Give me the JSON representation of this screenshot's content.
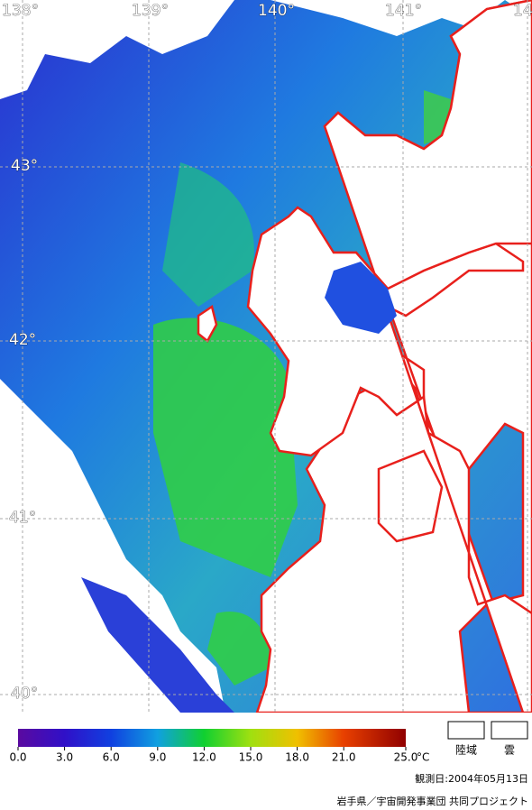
{
  "map": {
    "longitude_labels": [
      "138°",
      "139°",
      "140°",
      "141°",
      "14"
    ],
    "latitude_labels": [
      "43°",
      "42°",
      "41°",
      "40°"
    ]
  },
  "colorbar": {
    "range": [
      0,
      25
    ],
    "unit": "°C",
    "ticks": [
      {
        "value": 0,
        "label": "0.0"
      },
      {
        "value": 3,
        "label": "3.0"
      },
      {
        "value": 6,
        "label": "6.0"
      },
      {
        "value": 9,
        "label": "9.0"
      },
      {
        "value": 12,
        "label": "12.0"
      },
      {
        "value": 15,
        "label": "15.0"
      },
      {
        "value": 18,
        "label": "18.0"
      },
      {
        "value": 21,
        "label": "21.0"
      },
      {
        "value": 25,
        "label": "25.0"
      }
    ]
  },
  "legend": [
    "陸域",
    "雲"
  ],
  "date": "観測日:2004年05月13日",
  "credit": "岩手県／宇宙開発事業団 共同プロジェクト"
}
